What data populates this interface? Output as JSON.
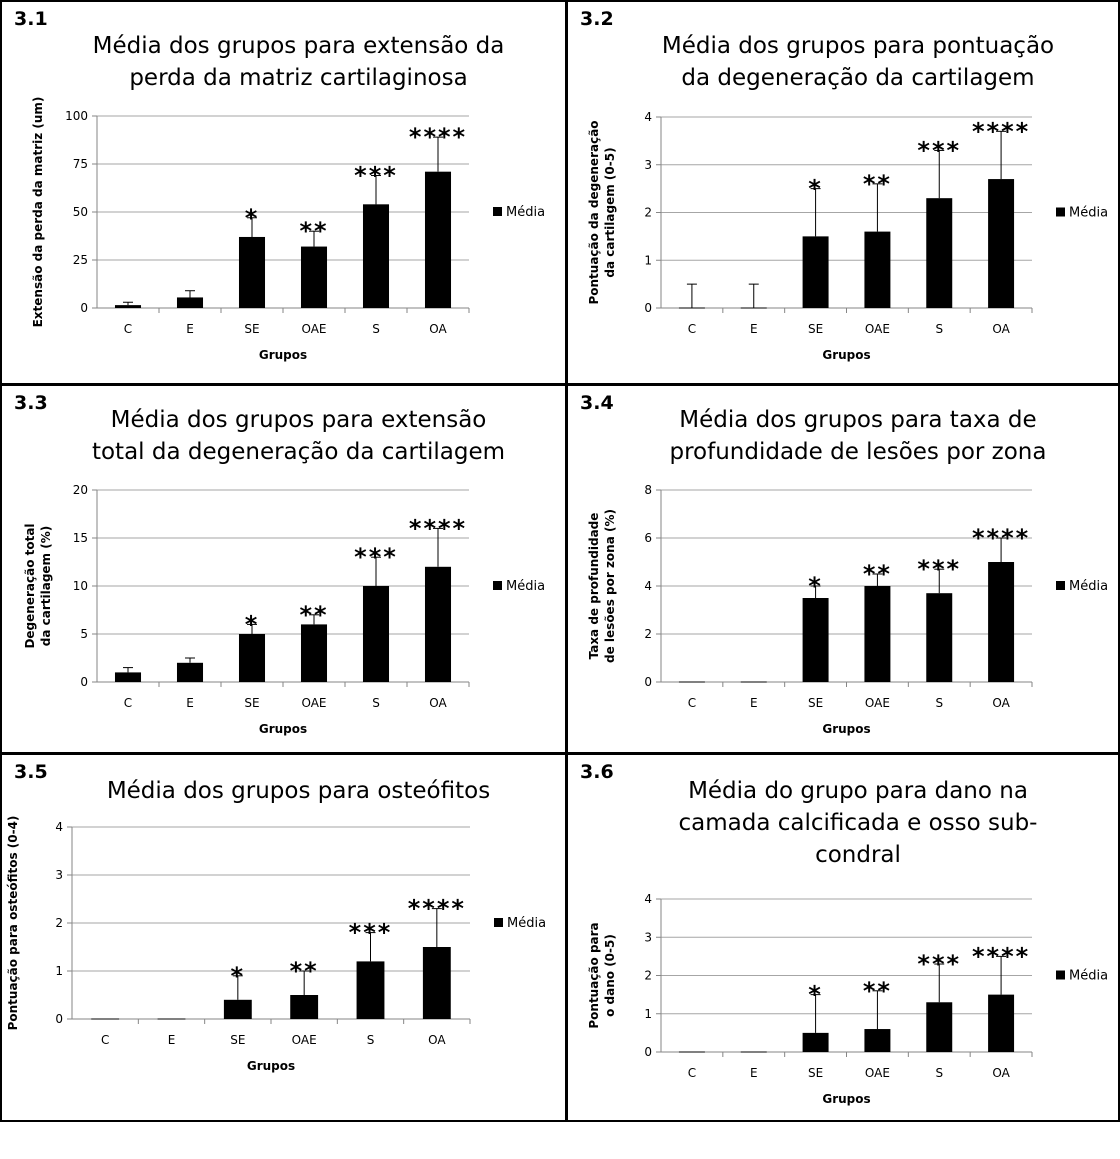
{
  "colors": {
    "bar": "#000000",
    "grid": "#a6a6a6",
    "axis": "#868686",
    "border": "#000000"
  },
  "chart_data": [
    {
      "id": "3.1",
      "number": "3.1",
      "type": "bar",
      "title": "Média dos grupos para extensão da perda da matriz cartilaginosa",
      "title_lines": [
        "Média dos grupos para extensão da",
        "perda da matriz cartilaginosa"
      ],
      "categories": [
        "C",
        "E",
        "SE",
        "OAE",
        "S",
        "OA"
      ],
      "series": [
        {
          "name": "Média",
          "values": [
            1.5,
            5.5,
            37,
            32,
            54,
            71
          ],
          "error": [
            1.5,
            3.5,
            10,
            8,
            15,
            18
          ]
        }
      ],
      "annotations": [
        "",
        "",
        "*",
        "**",
        "***",
        "****"
      ],
      "xlabel": "Grupos",
      "ylabel": "Extensão da perda da matriz (um)",
      "ylabel_lines": [
        "Extensão da perda da matriz (um)"
      ],
      "ylim": [
        0,
        100
      ],
      "yticks": [
        0,
        25,
        50,
        75,
        100
      ],
      "grid": true,
      "legend": "right"
    },
    {
      "id": "3.2",
      "number": "3.2",
      "type": "bar",
      "title": "Média dos grupos para pontuação da degeneração da cartilagem",
      "title_lines": [
        "Média dos grupos para pontuação",
        "da degeneração da cartilagem"
      ],
      "categories": [
        "C",
        "E",
        "SE",
        "OAE",
        "S",
        "OA"
      ],
      "series": [
        {
          "name": "Média",
          "values": [
            0,
            0,
            1.5,
            1.6,
            2.3,
            2.7
          ],
          "error": [
            0.5,
            0.5,
            1.0,
            1.0,
            1.0,
            1.0
          ]
        }
      ],
      "annotations": [
        "",
        "",
        "*",
        "**",
        "***",
        "****"
      ],
      "xlabel": "Grupos",
      "ylabel": "Pontuação da degeneração da cartilagem (0-5)",
      "ylabel_lines": [
        "Pontuação da degeneração",
        "da cartilagem (0-5)"
      ],
      "ylim": [
        0,
        4
      ],
      "yticks": [
        0,
        1,
        2,
        3,
        4
      ],
      "grid": true,
      "legend": "right"
    },
    {
      "id": "3.3",
      "number": "3.3",
      "type": "bar",
      "title": "Média dos grupos para extensão total da degeneração da cartilagem",
      "title_lines": [
        "Média dos grupos para extensão",
        "total da degeneração da cartilagem"
      ],
      "categories": [
        "C",
        "E",
        "SE",
        "OAE",
        "S",
        "OA"
      ],
      "series": [
        {
          "name": "Média",
          "values": [
            1,
            2,
            5,
            6,
            10,
            12
          ],
          "error": [
            0.5,
            0.5,
            1,
            1,
            3,
            4
          ]
        }
      ],
      "annotations": [
        "",
        "",
        "*",
        "**",
        "***",
        "****"
      ],
      "xlabel": "Grupos",
      "ylabel": "Degeneração total da cartilagem (%)",
      "ylabel_lines": [
        "Degeneração total",
        "da cartilagem (%)"
      ],
      "ylim": [
        0,
        20
      ],
      "yticks": [
        0,
        5,
        10,
        15,
        20
      ],
      "grid": true,
      "legend": "right"
    },
    {
      "id": "3.4",
      "number": "3.4",
      "type": "bar",
      "title": "Média dos grupos para taxa de profundidade de lesões por zona",
      "title_lines": [
        "Média dos grupos para taxa de",
        "profundidade de lesões por zona"
      ],
      "categories": [
        "C",
        "E",
        "SE",
        "OAE",
        "S",
        "OA"
      ],
      "series": [
        {
          "name": "Média",
          "values": [
            0,
            0,
            3.5,
            4,
            3.7,
            5
          ],
          "error": [
            0,
            0,
            0.5,
            0.5,
            1,
            1
          ]
        }
      ],
      "annotations": [
        "",
        "",
        "*",
        "**",
        "***",
        "****"
      ],
      "xlabel": "Grupos",
      "ylabel": "Taxa de profundidade de lesões por zona (%)",
      "ylabel_lines": [
        "Taxa de profundidade",
        "de lesões por zona (%)"
      ],
      "ylim": [
        0,
        8
      ],
      "yticks": [
        0,
        2,
        4,
        6,
        8
      ],
      "grid": true,
      "legend": "right"
    },
    {
      "id": "3.5",
      "number": "3.5",
      "type": "bar",
      "title": "Média dos grupos para osteófitos",
      "title_lines": [
        "Média dos grupos para osteófitos"
      ],
      "categories": [
        "C",
        "E",
        "SE",
        "OAE",
        "S",
        "OA"
      ],
      "series": [
        {
          "name": "Média",
          "values": [
            0,
            0,
            0.4,
            0.5,
            1.2,
            1.5
          ],
          "error": [
            0,
            0,
            0.5,
            0.5,
            0.6,
            0.8
          ]
        }
      ],
      "annotations": [
        "",
        "",
        "*",
        "**",
        "***",
        "****"
      ],
      "xlabel": "Grupos",
      "ylabel": "Pontuação para osteófitos (0-4)",
      "ylabel_lines": [
        "Pontuação para osteófitos (0-4)"
      ],
      "ylim": [
        0,
        4
      ],
      "yticks": [
        0,
        1,
        2,
        3,
        4
      ],
      "grid": true,
      "legend": "right"
    },
    {
      "id": "3.6",
      "number": "3.6",
      "type": "bar",
      "title": "Média do grupo para dano na camada calcificada e osso sub-condral",
      "title_lines": [
        "Média do grupo para dano na",
        "camada calcificada e osso sub-",
        "condral"
      ],
      "categories": [
        "C",
        "E",
        "SE",
        "OAE",
        "S",
        "OA"
      ],
      "series": [
        {
          "name": "Média",
          "values": [
            0,
            0,
            0.5,
            0.6,
            1.3,
            1.5
          ],
          "error": [
            0,
            0,
            1.0,
            1.0,
            1.0,
            1.0
          ]
        }
      ],
      "annotations": [
        "",
        "",
        "*",
        "**",
        "***",
        "****"
      ],
      "xlabel": "Grupos",
      "ylabel": "Pontuação para o dano (0-5)",
      "ylabel_lines": [
        "Pontuação para",
        "o dano (0-5)"
      ],
      "ylim": [
        0,
        4
      ],
      "yticks": [
        0,
        1,
        2,
        3,
        4
      ],
      "grid": true,
      "legend": "right"
    }
  ]
}
